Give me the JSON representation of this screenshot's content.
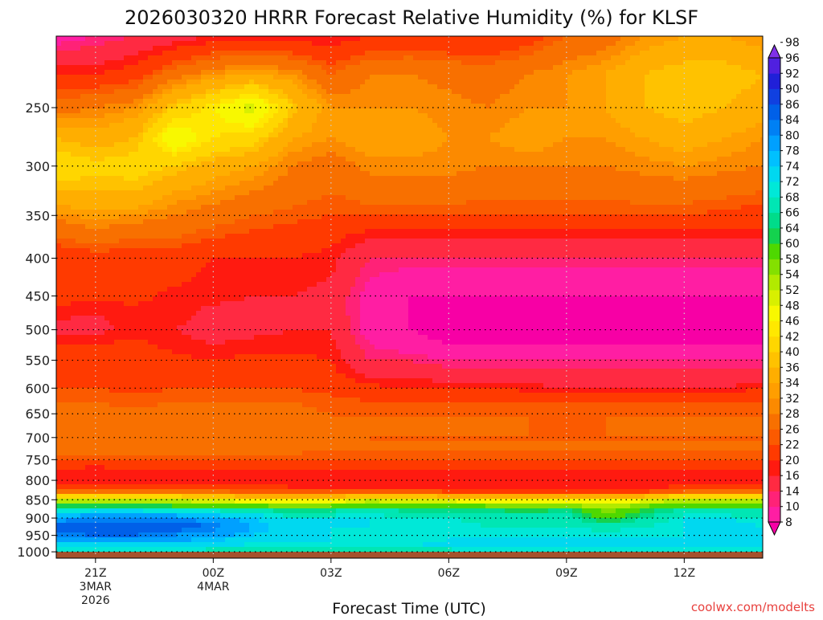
{
  "chart_data": {
    "type": "heatmap",
    "title": "2026030320 HRRR Forecast Relative Humidity (%) for KLSF",
    "xlabel": "Forecast Time (UTC)",
    "ylabel": "",
    "credit": "coolwx.com/modelts",
    "x_ticks": [
      {
        "hour": 21,
        "label": "21Z",
        "sub1": "3MAR",
        "sub2": "2026"
      },
      {
        "hour": 24,
        "label": "00Z",
        "sub1": "4MAR",
        "sub2": ""
      },
      {
        "hour": 27,
        "label": "03Z",
        "sub1": "",
        "sub2": ""
      },
      {
        "hour": 30,
        "label": "06Z",
        "sub1": "",
        "sub2": ""
      },
      {
        "hour": 33,
        "label": "09Z",
        "sub1": "",
        "sub2": ""
      },
      {
        "hour": 36,
        "label": "12Z",
        "sub1": "",
        "sub2": ""
      }
    ],
    "xlim": [
      20,
      38
    ],
    "y_ticks": [
      250,
      300,
      350,
      400,
      450,
      500,
      550,
      600,
      650,
      700,
      750,
      800,
      850,
      900,
      950,
      1000
    ],
    "ylim_hpa": [
      200,
      1020
    ],
    "ground_level_hpa": 1000,
    "y_scale": "log-pressure",
    "grid": true,
    "colorbar": {
      "levels": [
        8,
        10,
        14,
        16,
        20,
        22,
        26,
        28,
        32,
        34,
        36,
        40,
        42,
        46,
        48,
        52,
        54,
        58,
        60,
        64,
        66,
        68,
        72,
        74,
        78,
        80,
        84,
        86,
        90,
        92,
        96,
        98
      ],
      "colors": [
        "#f700a5",
        "#ff1ea3",
        "#ff2277",
        "#ff2a42",
        "#ff1a10",
        "#ff3a00",
        "#fb5a00",
        "#f87000",
        "#fc8a00",
        "#ff9e00",
        "#ffae00",
        "#ffc200",
        "#ffd600",
        "#ffe800",
        "#f8f800",
        "#d8f000",
        "#b2ea00",
        "#84e000",
        "#4ed800",
        "#14d24e",
        "#00dc8a",
        "#00e6b4",
        "#00e8d8",
        "#00d8f0",
        "#00c0ff",
        "#00a0ff",
        "#0080f4",
        "#0060e8",
        "#1040e0",
        "#2020d8",
        "#5020e0",
        "#8030e8"
      ],
      "position": "right",
      "extend": "both"
    },
    "profiles": {
      "pressure_levels": [
        200,
        225,
        250,
        275,
        300,
        325,
        350,
        375,
        400,
        425,
        450,
        475,
        500,
        525,
        550,
        575,
        600,
        625,
        650,
        675,
        700,
        725,
        750,
        775,
        800,
        825,
        850,
        875,
        900,
        925,
        950,
        975,
        1000
      ],
      "hours": [
        20,
        21,
        22,
        23,
        24,
        25,
        26,
        27,
        28,
        29,
        30,
        31,
        32,
        33,
        34,
        35,
        36,
        37,
        38
      ],
      "rh_by_hour": [
        [
          12,
          22,
          30,
          40,
          45,
          40,
          33,
          28,
          22,
          26,
          23,
          21,
          18,
          23,
          24,
          23,
          26,
          28,
          29,
          30,
          30,
          30,
          27,
          21,
          20,
          26,
          52,
          70,
          82,
          88,
          85,
          78,
          70
        ],
        [
          14,
          22,
          32,
          38,
          43,
          40,
          35,
          30,
          24,
          24,
          23,
          20,
          19,
          22,
          24,
          25,
          26,
          28,
          29,
          30,
          30,
          29,
          27,
          20,
          20,
          26,
          54,
          72,
          84,
          90,
          86,
          78,
          70
        ],
        [
          16,
          24,
          34,
          40,
          44,
          40,
          34,
          28,
          24,
          24,
          23,
          21,
          21,
          23,
          24,
          24,
          25,
          27,
          29,
          29,
          30,
          29,
          27,
          21,
          20,
          26,
          52,
          72,
          84,
          90,
          86,
          78,
          70
        ],
        [
          18,
          30,
          42,
          52,
          42,
          36,
          32,
          28,
          24,
          23,
          21,
          21,
          20,
          21,
          23,
          24,
          26,
          28,
          29,
          30,
          30,
          29,
          27,
          21,
          20,
          25,
          52,
          70,
          84,
          88,
          84,
          78,
          70
        ],
        [
          20,
          34,
          48,
          46,
          38,
          34,
          30,
          26,
          22,
          21,
          21,
          19,
          19,
          20,
          22,
          24,
          26,
          28,
          29,
          29,
          29,
          29,
          27,
          21,
          20,
          25,
          50,
          70,
          82,
          86,
          82,
          76,
          70
        ],
        [
          20,
          36,
          54,
          44,
          36,
          32,
          28,
          25,
          22,
          21,
          20,
          19,
          19,
          21,
          23,
          24,
          26,
          28,
          29,
          29,
          29,
          29,
          27,
          21,
          20,
          24,
          48,
          68,
          78,
          80,
          78,
          74,
          70
        ],
        [
          20,
          34,
          42,
          36,
          32,
          30,
          27,
          24,
          22,
          21,
          20,
          19,
          20,
          21,
          23,
          24,
          26,
          28,
          29,
          29,
          29,
          29,
          27,
          21,
          20,
          23,
          46,
          64,
          74,
          76,
          76,
          74,
          70
        ],
        [
          20,
          28,
          34,
          34,
          30,
          28,
          26,
          23,
          21,
          20,
          19,
          19,
          20,
          21,
          22,
          23,
          25,
          27,
          28,
          28,
          29,
          28,
          26,
          21,
          20,
          23,
          48,
          66,
          74,
          74,
          74,
          74,
          68
        ],
        [
          22,
          32,
          34,
          36,
          33,
          30,
          26,
          20,
          16,
          14,
          12,
          12,
          12,
          14,
          16,
          19,
          23,
          26,
          28,
          28,
          28,
          28,
          26,
          21,
          20,
          23,
          52,
          70,
          74,
          74,
          72,
          74,
          68
        ],
        [
          23,
          32,
          34,
          36,
          33,
          30,
          26,
          20,
          16,
          12,
          10,
          10,
          10,
          12,
          16,
          19,
          22,
          26,
          28,
          28,
          28,
          28,
          26,
          21,
          20,
          23,
          50,
          66,
          72,
          74,
          72,
          74,
          68
        ],
        [
          22,
          31,
          33,
          34,
          33,
          30,
          26,
          20,
          16,
          12,
          10,
          8,
          8,
          10,
          14,
          18,
          22,
          26,
          28,
          28,
          28,
          28,
          26,
          21,
          20,
          22,
          50,
          66,
          72,
          74,
          72,
          76,
          70
        ],
        [
          22,
          30,
          32,
          34,
          32,
          29,
          26,
          20,
          16,
          12,
          10,
          8,
          8,
          10,
          14,
          18,
          22,
          26,
          28,
          28,
          28,
          28,
          26,
          21,
          20,
          22,
          48,
          66,
          70,
          72,
          74,
          76,
          72
        ],
        [
          24,
          32,
          34,
          36,
          32,
          29,
          26,
          20,
          16,
          12,
          10,
          8,
          8,
          10,
          14,
          18,
          21,
          26,
          28,
          28,
          28,
          28,
          26,
          21,
          20,
          22,
          48,
          64,
          70,
          72,
          74,
          76,
          72
        ],
        [
          28,
          34,
          34,
          34,
          32,
          29,
          26,
          20,
          16,
          12,
          10,
          8,
          8,
          10,
          14,
          17,
          20,
          26,
          28,
          27,
          28,
          28,
          26,
          21,
          20,
          22,
          48,
          66,
          70,
          72,
          74,
          76,
          72
        ],
        [
          30,
          36,
          36,
          34,
          32,
          29,
          26,
          20,
          16,
          12,
          10,
          8,
          8,
          10,
          14,
          17,
          20,
          26,
          28,
          28,
          28,
          28,
          26,
          21,
          20,
          22,
          50,
          58,
          62,
          70,
          74,
          76,
          72
        ],
        [
          34,
          40,
          40,
          36,
          33,
          30,
          26,
          20,
          16,
          12,
          10,
          8,
          8,
          10,
          14,
          17,
          20,
          26,
          28,
          28,
          28,
          28,
          26,
          21,
          20,
          22,
          50,
          64,
          68,
          72,
          74,
          76,
          72
        ],
        [
          36,
          42,
          42,
          38,
          34,
          30,
          26,
          20,
          16,
          12,
          10,
          8,
          8,
          10,
          14,
          17,
          20,
          26,
          28,
          28,
          28,
          28,
          26,
          21,
          20,
          24,
          54,
          68,
          74,
          74,
          74,
          76,
          72
        ],
        [
          36,
          42,
          40,
          36,
          33,
          29,
          25,
          20,
          16,
          12,
          10,
          8,
          8,
          10,
          14,
          17,
          20,
          26,
          28,
          28,
          28,
          28,
          26,
          21,
          20,
          24,
          54,
          68,
          74,
          76,
          76,
          78,
          72
        ],
        [
          34,
          40,
          38,
          34,
          32,
          28,
          24,
          20,
          16,
          12,
          10,
          8,
          8,
          10,
          14,
          18,
          22,
          26,
          28,
          28,
          28,
          28,
          26,
          21,
          20,
          24,
          54,
          68,
          72,
          74,
          76,
          78,
          72
        ]
      ]
    }
  }
}
